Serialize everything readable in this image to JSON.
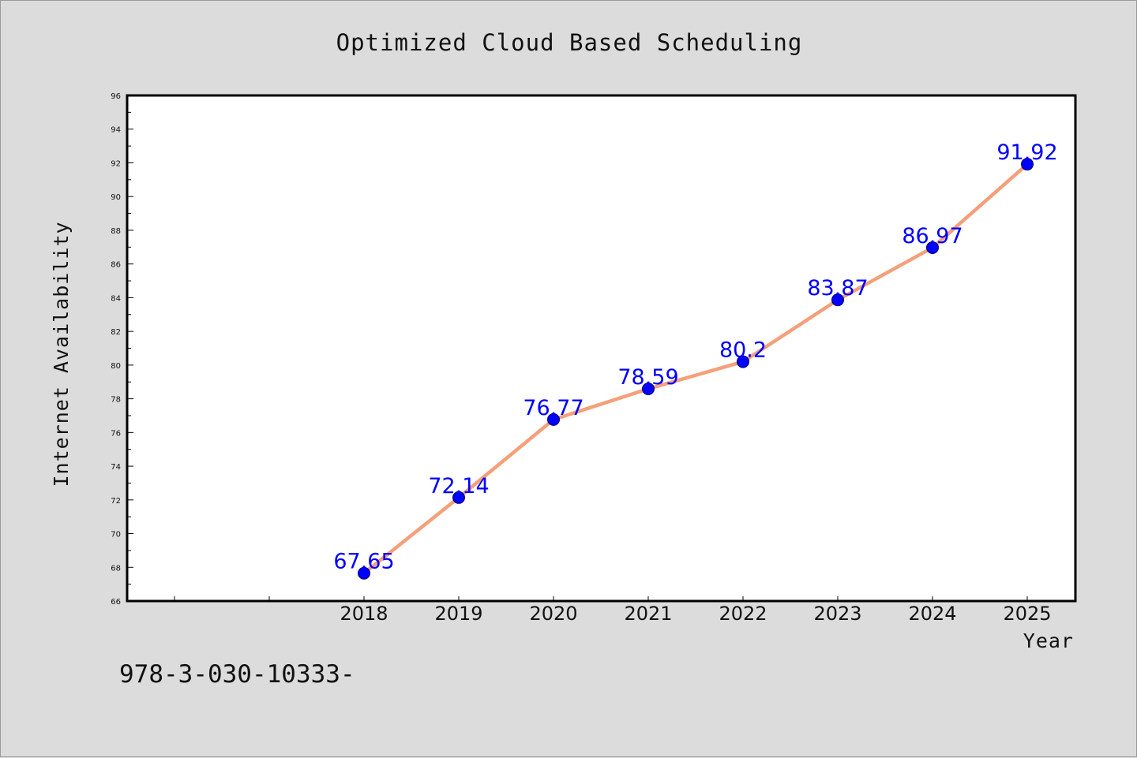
{
  "footnote": "978-3-030-10333-",
  "colors": {
    "background": "#dcdcdc",
    "plot_area": "#ffffff",
    "line": "#f4a07a",
    "marker": "#0000ff",
    "data_label": "#0000ff"
  },
  "chart_data": {
    "type": "line",
    "title": "Optimized Cloud Based Scheduling",
    "xlabel": "Year",
    "ylabel": "Internet Availability",
    "x_slots": [
      "",
      "",
      "2018",
      "2019",
      "2020",
      "2021",
      "2022",
      "2023",
      "2024",
      "2025"
    ],
    "categories": [
      "2018",
      "2019",
      "2020",
      "2021",
      "2022",
      "2023",
      "2024",
      "2025"
    ],
    "values": [
      67.65,
      72.14,
      76.77,
      78.59,
      80.2,
      83.87,
      86.97,
      91.92
    ],
    "data_labels": [
      "67.65",
      "72.14",
      "76.77",
      "78.59",
      "80.2",
      "83.87",
      "86.97",
      "91.92"
    ],
    "ylim": [
      66,
      96
    ],
    "yticks": [
      66,
      68,
      70,
      72,
      74,
      76,
      78,
      80,
      82,
      84,
      86,
      88,
      90,
      92,
      94,
      96
    ],
    "grid": false,
    "legend": "none"
  }
}
